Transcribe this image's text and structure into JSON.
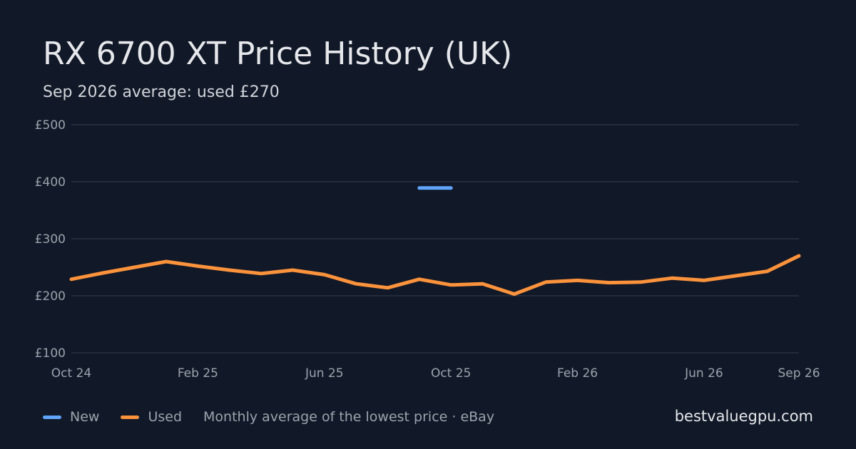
{
  "header": {
    "title": "RX 6700 XT Price History (UK)",
    "subtitle": "Sep 2026 average: used £270"
  },
  "footer": {
    "note": "Monthly average of the lowest price · eBay",
    "brand": "bestvaluegpu.com"
  },
  "chart_data": {
    "type": "line",
    "currency": "£",
    "title": "RX 6700 XT Price History (UK)",
    "subtitle": "Sep 2026 average: used £270",
    "x": [
      "2024-10",
      "2024-11",
      "2024-12",
      "2025-01",
      "2025-02",
      "2025-03",
      "2025-04",
      "2025-05",
      "2025-06",
      "2025-07",
      "2025-08",
      "2025-09",
      "2025-10",
      "2025-11",
      "2025-12",
      "2026-01",
      "2026-02",
      "2026-03",
      "2026-04",
      "2026-05",
      "2026-06",
      "2026-07",
      "2026-08",
      "2026-09"
    ],
    "x_tick_labels": [
      {
        "x": "2024-10",
        "label": "Oct 24"
      },
      {
        "x": "2025-02",
        "label": "Feb 25"
      },
      {
        "x": "2025-06",
        "label": "Jun 25"
      },
      {
        "x": "2025-10",
        "label": "Oct 25"
      },
      {
        "x": "2026-02",
        "label": "Feb 26"
      },
      {
        "x": "2026-06",
        "label": "Jun 26"
      },
      {
        "x": "2026-09",
        "label": "Sep 26"
      }
    ],
    "y_ticks": [
      {
        "value": 100,
        "label": "£100"
      },
      {
        "value": 200,
        "label": "£200"
      },
      {
        "value": 300,
        "label": "£300"
      },
      {
        "value": 400,
        "label": "£400"
      },
      {
        "value": 500,
        "label": "£500"
      }
    ],
    "ylim": [
      100,
      500
    ],
    "grid": true,
    "legend": "bottom-left",
    "series": [
      {
        "name": "New",
        "color": "#60a5fa",
        "values": [
          null,
          null,
          null,
          null,
          null,
          null,
          null,
          null,
          null,
          null,
          null,
          389,
          389,
          null,
          null,
          null,
          null,
          null,
          null,
          null,
          null,
          null,
          null,
          null
        ]
      },
      {
        "name": "Used",
        "color": "#fb923c",
        "values": [
          229,
          240,
          250,
          260,
          252,
          245,
          239,
          245,
          237,
          221,
          214,
          229,
          219,
          221,
          203,
          224,
          227,
          223,
          224,
          231,
          227,
          235,
          243,
          270
        ]
      }
    ]
  },
  "colors": {
    "background": "#111827",
    "grid": "#374151",
    "text": "#e5e7eb",
    "muted": "#9ca3af"
  }
}
